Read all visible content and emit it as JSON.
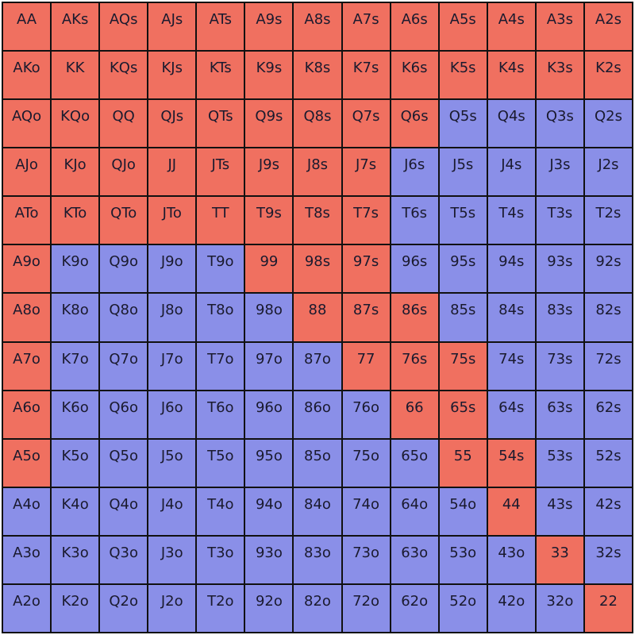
{
  "colors": {
    "in_range": "#f07060",
    "out_of_range": "#8a8fe8",
    "grid_line": "#111111"
  },
  "rows": [
    {
      "cells": [
        {
          "label": "AA",
          "in_range": true
        },
        {
          "label": "AKs",
          "in_range": true
        },
        {
          "label": "AQs",
          "in_range": true
        },
        {
          "label": "AJs",
          "in_range": true
        },
        {
          "label": "ATs",
          "in_range": true
        },
        {
          "label": "A9s",
          "in_range": true
        },
        {
          "label": "A8s",
          "in_range": true
        },
        {
          "label": "A7s",
          "in_range": true
        },
        {
          "label": "A6s",
          "in_range": true
        },
        {
          "label": "A5s",
          "in_range": true
        },
        {
          "label": "A4s",
          "in_range": true
        },
        {
          "label": "A3s",
          "in_range": true
        },
        {
          "label": "A2s",
          "in_range": true
        }
      ]
    },
    {
      "cells": [
        {
          "label": "AKo",
          "in_range": true
        },
        {
          "label": "KK",
          "in_range": true
        },
        {
          "label": "KQs",
          "in_range": true
        },
        {
          "label": "KJs",
          "in_range": true
        },
        {
          "label": "KTs",
          "in_range": true
        },
        {
          "label": "K9s",
          "in_range": true
        },
        {
          "label": "K8s",
          "in_range": true
        },
        {
          "label": "K7s",
          "in_range": true
        },
        {
          "label": "K6s",
          "in_range": true
        },
        {
          "label": "K5s",
          "in_range": true
        },
        {
          "label": "K4s",
          "in_range": true
        },
        {
          "label": "K3s",
          "in_range": true
        },
        {
          "label": "K2s",
          "in_range": true
        }
      ]
    },
    {
      "cells": [
        {
          "label": "AQo",
          "in_range": true
        },
        {
          "label": "KQo",
          "in_range": true
        },
        {
          "label": "QQ",
          "in_range": true
        },
        {
          "label": "QJs",
          "in_range": true
        },
        {
          "label": "QTs",
          "in_range": true
        },
        {
          "label": "Q9s",
          "in_range": true
        },
        {
          "label": "Q8s",
          "in_range": true
        },
        {
          "label": "Q7s",
          "in_range": true
        },
        {
          "label": "Q6s",
          "in_range": true
        },
        {
          "label": "Q5s",
          "in_range": false
        },
        {
          "label": "Q4s",
          "in_range": false
        },
        {
          "label": "Q3s",
          "in_range": false
        },
        {
          "label": "Q2s",
          "in_range": false
        }
      ]
    },
    {
      "cells": [
        {
          "label": "AJo",
          "in_range": true
        },
        {
          "label": "KJo",
          "in_range": true
        },
        {
          "label": "QJo",
          "in_range": true
        },
        {
          "label": "JJ",
          "in_range": true
        },
        {
          "label": "JTs",
          "in_range": true
        },
        {
          "label": "J9s",
          "in_range": true
        },
        {
          "label": "J8s",
          "in_range": true
        },
        {
          "label": "J7s",
          "in_range": true
        },
        {
          "label": "J6s",
          "in_range": false
        },
        {
          "label": "J5s",
          "in_range": false
        },
        {
          "label": "J4s",
          "in_range": false
        },
        {
          "label": "J3s",
          "in_range": false
        },
        {
          "label": "J2s",
          "in_range": false
        }
      ]
    },
    {
      "cells": [
        {
          "label": "ATo",
          "in_range": true
        },
        {
          "label": "KTo",
          "in_range": true
        },
        {
          "label": "QTo",
          "in_range": true
        },
        {
          "label": "JTo",
          "in_range": true
        },
        {
          "label": "TT",
          "in_range": true
        },
        {
          "label": "T9s",
          "in_range": true
        },
        {
          "label": "T8s",
          "in_range": true
        },
        {
          "label": "T7s",
          "in_range": true
        },
        {
          "label": "T6s",
          "in_range": false
        },
        {
          "label": "T5s",
          "in_range": false
        },
        {
          "label": "T4s",
          "in_range": false
        },
        {
          "label": "T3s",
          "in_range": false
        },
        {
          "label": "T2s",
          "in_range": false
        }
      ]
    },
    {
      "cells": [
        {
          "label": "A9o",
          "in_range": true
        },
        {
          "label": "K9o",
          "in_range": false
        },
        {
          "label": "Q9o",
          "in_range": false
        },
        {
          "label": "J9o",
          "in_range": false
        },
        {
          "label": "T9o",
          "in_range": false
        },
        {
          "label": "99",
          "in_range": true
        },
        {
          "label": "98s",
          "in_range": true
        },
        {
          "label": "97s",
          "in_range": true
        },
        {
          "label": "96s",
          "in_range": false
        },
        {
          "label": "95s",
          "in_range": false
        },
        {
          "label": "94s",
          "in_range": false
        },
        {
          "label": "93s",
          "in_range": false
        },
        {
          "label": "92s",
          "in_range": false
        }
      ]
    },
    {
      "cells": [
        {
          "label": "A8o",
          "in_range": true
        },
        {
          "label": "K8o",
          "in_range": false
        },
        {
          "label": "Q8o",
          "in_range": false
        },
        {
          "label": "J8o",
          "in_range": false
        },
        {
          "label": "T8o",
          "in_range": false
        },
        {
          "label": "98o",
          "in_range": false
        },
        {
          "label": "88",
          "in_range": true
        },
        {
          "label": "87s",
          "in_range": true
        },
        {
          "label": "86s",
          "in_range": true
        },
        {
          "label": "85s",
          "in_range": false
        },
        {
          "label": "84s",
          "in_range": false
        },
        {
          "label": "83s",
          "in_range": false
        },
        {
          "label": "82s",
          "in_range": false
        }
      ]
    },
    {
      "cells": [
        {
          "label": "A7o",
          "in_range": true
        },
        {
          "label": "K7o",
          "in_range": false
        },
        {
          "label": "Q7o",
          "in_range": false
        },
        {
          "label": "J7o",
          "in_range": false
        },
        {
          "label": "T7o",
          "in_range": false
        },
        {
          "label": "97o",
          "in_range": false
        },
        {
          "label": "87o",
          "in_range": false
        },
        {
          "label": "77",
          "in_range": true
        },
        {
          "label": "76s",
          "in_range": true
        },
        {
          "label": "75s",
          "in_range": true
        },
        {
          "label": "74s",
          "in_range": false
        },
        {
          "label": "73s",
          "in_range": false
        },
        {
          "label": "72s",
          "in_range": false
        }
      ]
    },
    {
      "cells": [
        {
          "label": "A6o",
          "in_range": true
        },
        {
          "label": "K6o",
          "in_range": false
        },
        {
          "label": "Q6o",
          "in_range": false
        },
        {
          "label": "J6o",
          "in_range": false
        },
        {
          "label": "T6o",
          "in_range": false
        },
        {
          "label": "96o",
          "in_range": false
        },
        {
          "label": "86o",
          "in_range": false
        },
        {
          "label": "76o",
          "in_range": false
        },
        {
          "label": "66",
          "in_range": true
        },
        {
          "label": "65s",
          "in_range": true
        },
        {
          "label": "64s",
          "in_range": false
        },
        {
          "label": "63s",
          "in_range": false
        },
        {
          "label": "62s",
          "in_range": false
        }
      ]
    },
    {
      "cells": [
        {
          "label": "A5o",
          "in_range": true
        },
        {
          "label": "K5o",
          "in_range": false
        },
        {
          "label": "Q5o",
          "in_range": false
        },
        {
          "label": "J5o",
          "in_range": false
        },
        {
          "label": "T5o",
          "in_range": false
        },
        {
          "label": "95o",
          "in_range": false
        },
        {
          "label": "85o",
          "in_range": false
        },
        {
          "label": "75o",
          "in_range": false
        },
        {
          "label": "65o",
          "in_range": false
        },
        {
          "label": "55",
          "in_range": true
        },
        {
          "label": "54s",
          "in_range": true
        },
        {
          "label": "53s",
          "in_range": false
        },
        {
          "label": "52s",
          "in_range": false
        }
      ]
    },
    {
      "cells": [
        {
          "label": "A4o",
          "in_range": false
        },
        {
          "label": "K4o",
          "in_range": false
        },
        {
          "label": "Q4o",
          "in_range": false
        },
        {
          "label": "J4o",
          "in_range": false
        },
        {
          "label": "T4o",
          "in_range": false
        },
        {
          "label": "94o",
          "in_range": false
        },
        {
          "label": "84o",
          "in_range": false
        },
        {
          "label": "74o",
          "in_range": false
        },
        {
          "label": "64o",
          "in_range": false
        },
        {
          "label": "54o",
          "in_range": false
        },
        {
          "label": "44",
          "in_range": true
        },
        {
          "label": "43s",
          "in_range": false
        },
        {
          "label": "42s",
          "in_range": false
        }
      ]
    },
    {
      "cells": [
        {
          "label": "A3o",
          "in_range": false
        },
        {
          "label": "K3o",
          "in_range": false
        },
        {
          "label": "Q3o",
          "in_range": false
        },
        {
          "label": "J3o",
          "in_range": false
        },
        {
          "label": "T3o",
          "in_range": false
        },
        {
          "label": "93o",
          "in_range": false
        },
        {
          "label": "83o",
          "in_range": false
        },
        {
          "label": "73o",
          "in_range": false
        },
        {
          "label": "63o",
          "in_range": false
        },
        {
          "label": "53o",
          "in_range": false
        },
        {
          "label": "43o",
          "in_range": false
        },
        {
          "label": "33",
          "in_range": true
        },
        {
          "label": "32s",
          "in_range": false
        }
      ]
    },
    {
      "cells": [
        {
          "label": "A2o",
          "in_range": false
        },
        {
          "label": "K2o",
          "in_range": false
        },
        {
          "label": "Q2o",
          "in_range": false
        },
        {
          "label": "J2o",
          "in_range": false
        },
        {
          "label": "T2o",
          "in_range": false
        },
        {
          "label": "92o",
          "in_range": false
        },
        {
          "label": "82o",
          "in_range": false
        },
        {
          "label": "72o",
          "in_range": false
        },
        {
          "label": "62o",
          "in_range": false
        },
        {
          "label": "52o",
          "in_range": false
        },
        {
          "label": "42o",
          "in_range": false
        },
        {
          "label": "32o",
          "in_range": false
        },
        {
          "label": "22",
          "in_range": true
        }
      ]
    }
  ]
}
